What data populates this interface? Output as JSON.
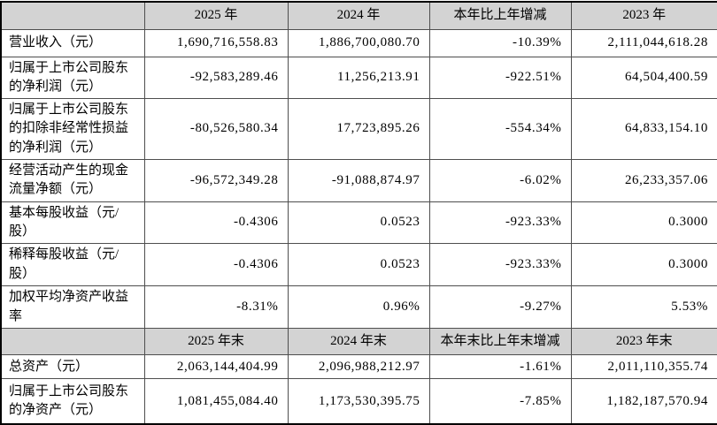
{
  "colors": {
    "header_bg": "#d3d3d3",
    "border": "#4e4e4e",
    "outer_border": "#000000",
    "text": "#000000",
    "background": "#ffffff"
  },
  "table": {
    "section1": {
      "headers": {
        "col0": "",
        "col1": "2025 年",
        "col2": "2024 年",
        "col3": "本年比上年增减",
        "col4": "2023 年"
      },
      "rows": [
        {
          "label": "营业收入（元）",
          "c1": "1,690,716,558.83",
          "c2": "1,886,700,080.70",
          "c3": "-10.39%",
          "c4": "2,111,044,618.28"
        },
        {
          "label": "归属于上市公司股东的净利润（元）",
          "c1": "-92,583,289.46",
          "c2": "11,256,213.91",
          "c3": "-922.51%",
          "c4": "64,504,400.59"
        },
        {
          "label": "归属于上市公司股东的扣除非经常性损益的净利润（元）",
          "c1": "-80,526,580.34",
          "c2": "17,723,895.26",
          "c3": "-554.34%",
          "c4": "64,833,154.10"
        },
        {
          "label": "经营活动产生的现金流量净额（元）",
          "c1": "-96,572,349.28",
          "c2": "-91,088,874.97",
          "c3": "-6.02%",
          "c4": "26,233,357.06"
        },
        {
          "label": "基本每股收益（元/股）",
          "c1": "-0.4306",
          "c2": "0.0523",
          "c3": "-923.33%",
          "c4": "0.3000"
        },
        {
          "label": "稀释每股收益（元/股）",
          "c1": "-0.4306",
          "c2": "0.0523",
          "c3": "-923.33%",
          "c4": "0.3000"
        },
        {
          "label": "加权平均净资产收益率",
          "c1": "-8.31%",
          "c2": "0.96%",
          "c3": "-9.27%",
          "c4": "5.53%"
        }
      ]
    },
    "section2": {
      "headers": {
        "col0": "",
        "col1": "2025 年末",
        "col2": "2024 年末",
        "col3": "本年末比上年末增减",
        "col4": "2023 年末"
      },
      "rows": [
        {
          "label": "总资产（元）",
          "c1": "2,063,144,404.99",
          "c2": "2,096,988,212.97",
          "c3": "-1.61%",
          "c4": "2,011,110,355.74"
        },
        {
          "label": "归属于上市公司股东的净资产（元）",
          "c1": "1,081,455,084.40",
          "c2": "1,173,530,395.75",
          "c3": "-7.85%",
          "c4": "1,182,187,570.94"
        }
      ]
    }
  }
}
